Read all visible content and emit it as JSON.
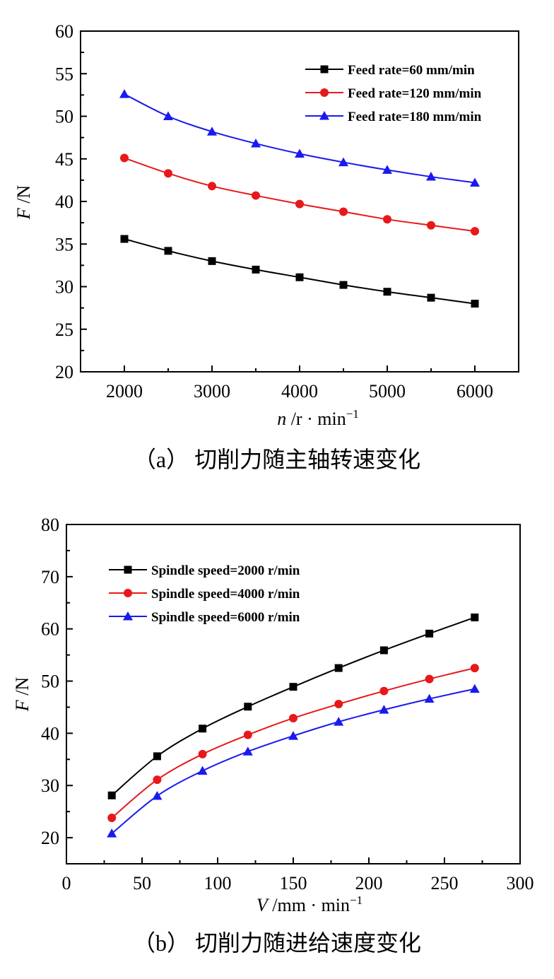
{
  "chart_data": [
    {
      "type": "line",
      "caption": "（a）  切削力随主轴转速变化",
      "xlabel_var": "n",
      "xlabel_unit": " /r · min",
      "xlabel_sup": "−1",
      "ylabel_var": "F",
      "ylabel_unit": " /N",
      "xlim": [
        1500,
        6500
      ],
      "ylim": [
        20,
        60
      ],
      "xticks": [
        2000,
        3000,
        4000,
        5000,
        6000
      ],
      "xticks_minor": [
        2500,
        3500,
        4500,
        5500
      ],
      "yticks": [
        20,
        25,
        30,
        35,
        40,
        45,
        50,
        55,
        60
      ],
      "legend_position": "top-right",
      "x": [
        2000,
        2500,
        3000,
        3500,
        4000,
        4500,
        5000,
        5500,
        6000
      ],
      "series": [
        {
          "name": "Feed rate=60 mm/min",
          "color": "#000000",
          "marker": "square",
          "values": [
            35.6,
            34.2,
            33.0,
            32.0,
            31.1,
            30.2,
            29.4,
            28.7,
            28.0
          ]
        },
        {
          "name": "Feed rate=120 mm/min",
          "color": "#e8181a",
          "marker": "circle",
          "values": [
            45.1,
            43.3,
            41.8,
            40.7,
            39.7,
            38.8,
            37.9,
            37.2,
            36.5
          ]
        },
        {
          "name": "Feed rate=180 mm/min",
          "color": "#1a1aee",
          "marker": "triangle",
          "values": [
            52.6,
            50.0,
            48.2,
            46.8,
            45.6,
            44.6,
            43.7,
            42.9,
            42.2
          ]
        }
      ]
    },
    {
      "type": "line",
      "caption": "（b）  切削力随进给速度变化",
      "xlabel_var": "V",
      "xlabel_unit": " /mm · min",
      "xlabel_sup": "−1",
      "ylabel_var": "F",
      "ylabel_unit": " /N",
      "xlim": [
        0,
        300
      ],
      "ylim": [
        15,
        80
      ],
      "xticks": [
        0,
        50,
        100,
        150,
        200,
        250,
        300
      ],
      "xticks_minor": [
        25,
        75,
        125,
        175,
        225,
        275
      ],
      "yticks": [
        20,
        30,
        40,
        50,
        60,
        70,
        80
      ],
      "legend_position": "top-left",
      "x": [
        30,
        60,
        90,
        120,
        150,
        180,
        210,
        240,
        270
      ],
      "series": [
        {
          "name": "Spindle speed=2000 r/min",
          "color": "#000000",
          "marker": "square",
          "values": [
            28.1,
            35.6,
            40.9,
            45.1,
            48.9,
            52.5,
            55.9,
            59.1,
            62.2
          ]
        },
        {
          "name": "Spindle speed=4000 r/min",
          "color": "#e8181a",
          "marker": "circle",
          "values": [
            23.8,
            31.1,
            36.0,
            39.7,
            42.9,
            45.6,
            48.1,
            50.4,
            52.5
          ]
        },
        {
          "name": "Spindle speed=6000 r/min",
          "color": "#1a1aee",
          "marker": "triangle",
          "values": [
            20.8,
            28.0,
            32.8,
            36.5,
            39.5,
            42.2,
            44.5,
            46.6,
            48.5
          ]
        }
      ]
    }
  ]
}
